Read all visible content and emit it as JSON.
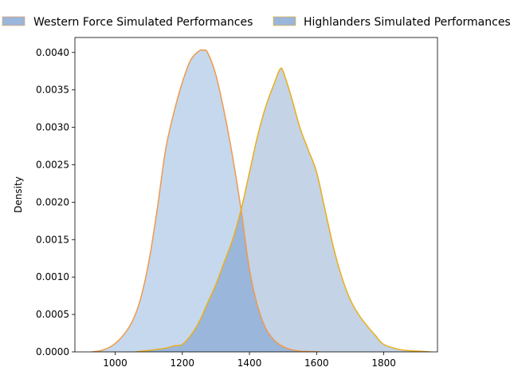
{
  "chart_data": {
    "type": "area",
    "ylabel": "Density",
    "xlabel": "",
    "xlim": [
      880,
      1960
    ],
    "ylim": [
      0,
      0.0042
    ],
    "x_ticks": [
      1000,
      1200,
      1400,
      1600,
      1800
    ],
    "y_ticks": [
      0,
      0.0005,
      0.001,
      0.0015,
      0.002,
      0.0025,
      0.003,
      0.0035,
      0.004
    ],
    "y_tick_labels": [
      "0.0000",
      "0.0005",
      "0.0010",
      "0.0015",
      "0.0020",
      "0.0025",
      "0.0030",
      "0.0035",
      "0.0040"
    ],
    "legend_position": "top (above plot)",
    "series": [
      {
        "name": "Western Force Simulated Performances",
        "fill": "#c6d8ed",
        "line": "#ee9a4d",
        "x": [
          930,
          960,
          990,
          1020,
          1050,
          1075,
          1100,
          1125,
          1150,
          1175,
          1200,
          1225,
          1250,
          1262,
          1275,
          1300,
          1325,
          1350,
          1375,
          1400,
          1425,
          1450,
          1475,
          1500,
          1525,
          1550,
          1575,
          1610
        ],
        "y": [
          0,
          2e-05,
          8e-05,
          0.0002,
          0.0004,
          0.0007,
          0.0012,
          0.0019,
          0.0027,
          0.0032,
          0.0036,
          0.0039,
          0.00402,
          0.00403,
          0.004,
          0.0037,
          0.0032,
          0.0026,
          0.0019,
          0.0011,
          0.0006,
          0.0003,
          0.00015,
          7e-05,
          3e-05,
          1e-05,
          5e-06,
          0
        ]
      },
      {
        "name": "Highlanders Simulated Performances",
        "fill": "#c4d3e6",
        "line": "#e9ae1a",
        "x": [
          1060,
          1100,
          1150,
          1175,
          1200,
          1225,
          1250,
          1275,
          1300,
          1325,
          1350,
          1375,
          1400,
          1425,
          1450,
          1475,
          1490,
          1500,
          1525,
          1550,
          1575,
          1600,
          1625,
          1650,
          1675,
          1700,
          1725,
          1750,
          1775,
          1800,
          1850,
          1900,
          1940
        ],
        "y": [
          0,
          2e-05,
          5e-05,
          8e-05,
          0.0001,
          0.00022,
          0.0004,
          0.00065,
          0.0009,
          0.0012,
          0.0015,
          0.0019,
          0.0024,
          0.0029,
          0.0033,
          0.0036,
          0.00377,
          0.00375,
          0.0034,
          0.003,
          0.0027,
          0.0024,
          0.0019,
          0.0014,
          0.001,
          0.0007,
          0.0005,
          0.00035,
          0.00022,
          0.0001,
          3e-05,
          1e-05,
          0
        ]
      }
    ],
    "overlap_fill": "#9ab6da"
  }
}
